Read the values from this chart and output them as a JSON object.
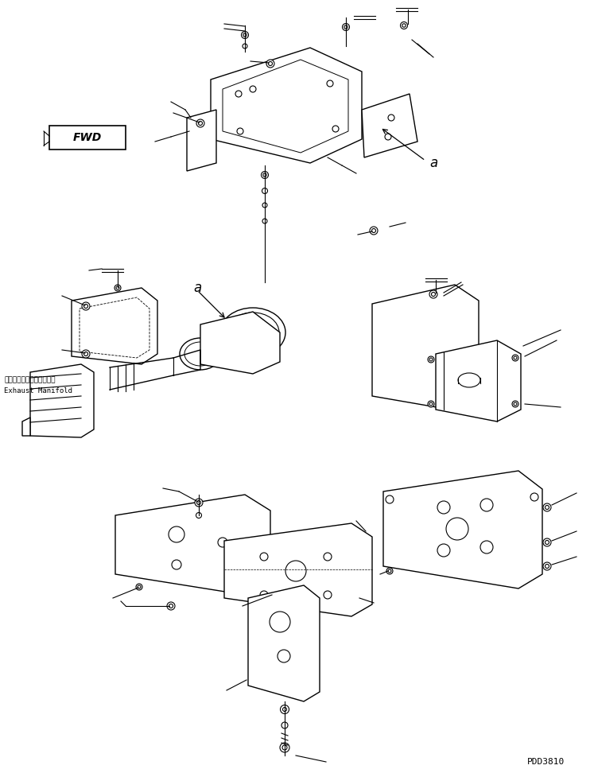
{
  "bg_color": "#ffffff",
  "line_color": "#000000",
  "fig_width": 7.47,
  "fig_height": 9.72,
  "dpi": 100,
  "bottom_right_text": "PDD3810",
  "fwd_label": "FWD",
  "label_a1": "a",
  "label_a2": "a",
  "exhaust_jp": "エキゾーストマニホールド",
  "exhaust_en": "Exhaust Manifold"
}
